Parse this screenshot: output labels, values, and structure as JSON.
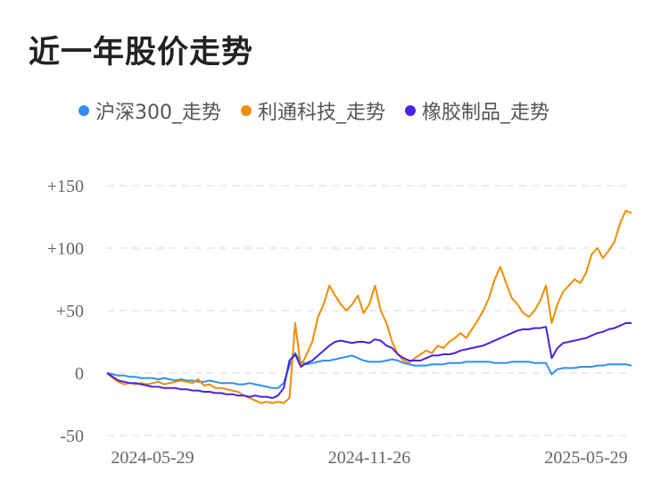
{
  "title": "近一年股价走势",
  "chart_data": {
    "type": "line",
    "title": "近一年股价走势",
    "xlabel": "",
    "ylabel": "",
    "x_ticks": [
      "2024-05-29",
      "2024-11-26",
      "2025-05-29"
    ],
    "y_ticks": [
      "+150",
      "+100",
      "+50",
      "0",
      "-50"
    ],
    "ylim": [
      -50,
      150
    ],
    "grid": true,
    "legend_position": "top",
    "series": [
      {
        "name": "沪深300_走势",
        "color": "#2f8ff0",
        "values": [
          0,
          -1,
          -2,
          -2,
          -3,
          -3,
          -4,
          -4,
          -4,
          -5,
          -4,
          -5,
          -6,
          -5,
          -6,
          -6,
          -7,
          -7,
          -6,
          -7,
          -8,
          -8,
          -8,
          -9,
          -9,
          -8,
          -9,
          -10,
          -11,
          -12,
          -12,
          -8,
          6,
          16,
          9,
          7,
          8,
          9,
          10,
          10,
          11,
          12,
          13,
          14,
          12,
          10,
          9,
          9,
          9,
          10,
          11,
          10,
          8,
          7,
          6,
          6,
          6,
          7,
          7,
          7,
          8,
          8,
          8,
          9,
          9,
          9,
          9,
          9,
          8,
          8,
          8,
          9,
          9,
          9,
          9,
          8,
          8,
          8,
          -1,
          3,
          4,
          4,
          4,
          5,
          5,
          5,
          6,
          6,
          7,
          7,
          7,
          7,
          6
        ]
      },
      {
        "name": "利通科技_走势",
        "color": "#f08c00",
        "values": [
          0,
          -4,
          -7,
          -9,
          -8,
          -9,
          -8,
          -9,
          -8,
          -7,
          -9,
          -8,
          -7,
          -6,
          -7,
          -8,
          -5,
          -10,
          -9,
          -12,
          -12,
          -13,
          -14,
          -15,
          -18,
          -20,
          -22,
          -24,
          -23,
          -24,
          -23,
          -24,
          -20,
          40,
          5,
          15,
          25,
          45,
          55,
          70,
          62,
          55,
          50,
          55,
          62,
          48,
          55,
          70,
          50,
          40,
          25,
          15,
          10,
          8,
          12,
          15,
          18,
          16,
          22,
          20,
          25,
          28,
          32,
          28,
          35,
          42,
          50,
          60,
          75,
          85,
          72,
          60,
          55,
          48,
          45,
          50,
          58,
          70,
          40,
          55,
          65,
          70,
          75,
          72,
          80,
          95,
          100,
          92,
          98,
          105,
          120,
          130,
          128
        ]
      },
      {
        "name": "橡胶制品_走势",
        "color": "#4a22e6",
        "values": [
          0,
          -3,
          -6,
          -7,
          -8,
          -8,
          -9,
          -10,
          -11,
          -11,
          -12,
          -12,
          -12,
          -13,
          -13,
          -14,
          -14,
          -15,
          -15,
          -16,
          -16,
          -17,
          -17,
          -18,
          -18,
          -19,
          -18,
          -19,
          -19,
          -20,
          -18,
          -12,
          10,
          15,
          5,
          8,
          10,
          14,
          18,
          22,
          25,
          26,
          25,
          24,
          25,
          25,
          24,
          27,
          26,
          22,
          20,
          15,
          12,
          10,
          10,
          10,
          12,
          14,
          14,
          15,
          15,
          16,
          18,
          19,
          20,
          21,
          22,
          24,
          26,
          28,
          30,
          32,
          34,
          35,
          35,
          36,
          36,
          37,
          12,
          20,
          24,
          25,
          26,
          27,
          28,
          30,
          32,
          33,
          35,
          36,
          38,
          40,
          40
        ]
      }
    ]
  }
}
